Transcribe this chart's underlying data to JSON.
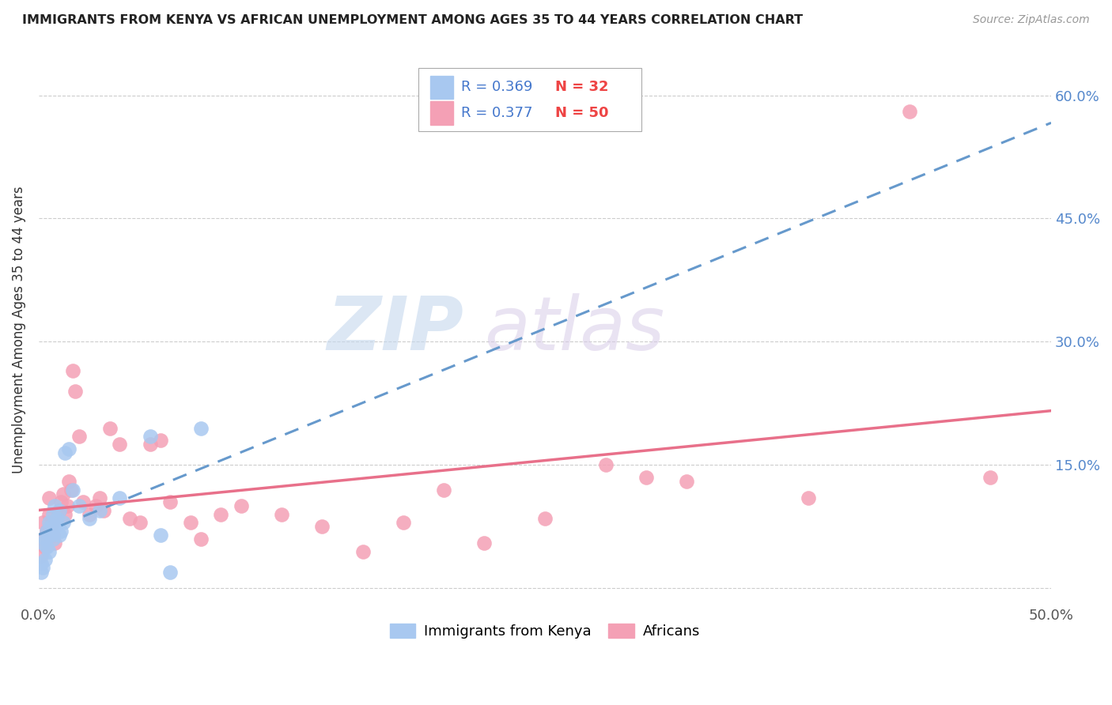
{
  "title": "IMMIGRANTS FROM KENYA VS AFRICAN UNEMPLOYMENT AMONG AGES 35 TO 44 YEARS CORRELATION CHART",
  "source": "Source: ZipAtlas.com",
  "ylabel": "Unemployment Among Ages 35 to 44 years",
  "xlim": [
    0.0,
    0.5
  ],
  "ylim": [
    -0.02,
    0.65
  ],
  "xticks": [
    0.0,
    0.1,
    0.2,
    0.3,
    0.4,
    0.5
  ],
  "xticklabels": [
    "0.0%",
    "",
    "",
    "",
    "",
    "50.0%"
  ],
  "yticks": [
    0.0,
    0.15,
    0.3,
    0.45,
    0.6
  ],
  "yticklabels_right": [
    "",
    "15.0%",
    "30.0%",
    "45.0%",
    "60.0%"
  ],
  "legend_label_kenya": "Immigrants from Kenya",
  "legend_label_african": "Africans",
  "kenya_color": "#a8c8f0",
  "african_color": "#f4a0b5",
  "kenya_line_color": "#6699cc",
  "african_line_color": "#e8708a",
  "kenya_x": [
    0.001,
    0.001,
    0.002,
    0.002,
    0.003,
    0.003,
    0.004,
    0.004,
    0.005,
    0.005,
    0.006,
    0.006,
    0.007,
    0.007,
    0.008,
    0.008,
    0.009,
    0.01,
    0.01,
    0.011,
    0.012,
    0.013,
    0.015,
    0.017,
    0.02,
    0.025,
    0.03,
    0.04,
    0.055,
    0.06,
    0.065,
    0.08
  ],
  "kenya_y": [
    0.02,
    0.03,
    0.025,
    0.055,
    0.035,
    0.06,
    0.05,
    0.07,
    0.045,
    0.08,
    0.065,
    0.075,
    0.06,
    0.09,
    0.075,
    0.1,
    0.085,
    0.065,
    0.095,
    0.07,
    0.08,
    0.165,
    0.17,
    0.12,
    0.1,
    0.085,
    0.095,
    0.11,
    0.185,
    0.065,
    0.02,
    0.195
  ],
  "african_x": [
    0.001,
    0.002,
    0.002,
    0.003,
    0.004,
    0.005,
    0.005,
    0.006,
    0.007,
    0.008,
    0.009,
    0.01,
    0.011,
    0.012,
    0.013,
    0.014,
    0.015,
    0.016,
    0.017,
    0.018,
    0.02,
    0.022,
    0.025,
    0.028,
    0.03,
    0.032,
    0.035,
    0.04,
    0.045,
    0.05,
    0.055,
    0.06,
    0.065,
    0.075,
    0.08,
    0.09,
    0.1,
    0.12,
    0.14,
    0.16,
    0.18,
    0.2,
    0.22,
    0.25,
    0.28,
    0.3,
    0.32,
    0.38,
    0.43,
    0.47
  ],
  "african_y": [
    0.04,
    0.06,
    0.08,
    0.05,
    0.07,
    0.09,
    0.11,
    0.075,
    0.065,
    0.055,
    0.085,
    0.095,
    0.105,
    0.115,
    0.09,
    0.1,
    0.13,
    0.12,
    0.265,
    0.24,
    0.185,
    0.105,
    0.09,
    0.1,
    0.11,
    0.095,
    0.195,
    0.175,
    0.085,
    0.08,
    0.175,
    0.18,
    0.105,
    0.08,
    0.06,
    0.09,
    0.1,
    0.09,
    0.075,
    0.045,
    0.08,
    0.12,
    0.055,
    0.085,
    0.15,
    0.135,
    0.13,
    0.11,
    0.58,
    0.135
  ],
  "watermark_zip": "ZIP",
  "watermark_atlas": "atlas",
  "background_color": "#ffffff",
  "grid_color": "#cccccc"
}
